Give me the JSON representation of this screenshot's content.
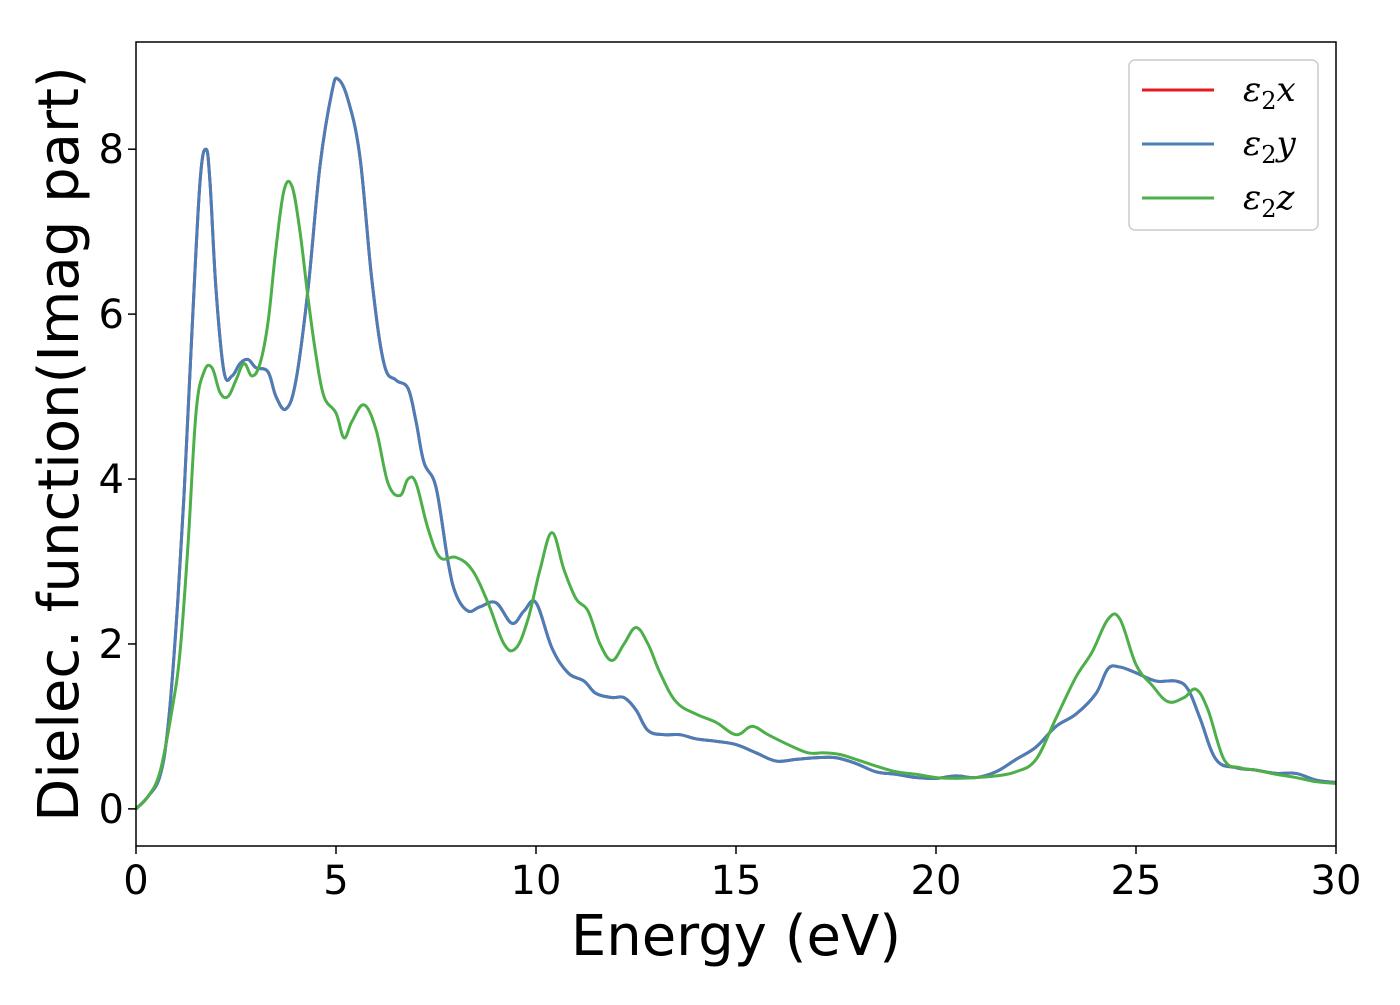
{
  "chart_data": {
    "type": "line",
    "title": "",
    "xlabel": "Energy (eV)",
    "ylabel": "Dielec. function(Imag part)",
    "xlim": [
      0,
      30
    ],
    "ylim": [
      -0.45,
      9.3
    ],
    "xticks": [
      0,
      5,
      10,
      15,
      20,
      25,
      30
    ],
    "xtick_labels": [
      "0",
      "5",
      "10",
      "15",
      "20",
      "25",
      "30"
    ],
    "yticks": [
      0,
      2,
      4,
      6,
      8
    ],
    "ytick_labels": [
      "0",
      "2",
      "4",
      "6",
      "8"
    ],
    "grid": false,
    "legend_position": "top-right",
    "legend": [
      {
        "base": "ε",
        "sub": "2",
        "suffix": "x",
        "color": "#e41a1c"
      },
      {
        "base": "ε",
        "sub": "2",
        "suffix": "y",
        "color": "#4a7eb8"
      },
      {
        "base": "ε",
        "sub": "2",
        "suffix": "z",
        "color": "#4daf4a"
      }
    ],
    "series": [
      {
        "name": "ε2x",
        "color": "#e41a1c",
        "x": [
          0,
          0.3,
          0.6,
          0.8,
          1.0,
          1.2,
          1.4,
          1.6,
          1.75,
          1.85,
          2.0,
          2.2,
          2.4,
          2.6,
          2.8,
          3.0,
          3.3,
          3.5,
          3.75,
          4.0,
          4.3,
          4.6,
          4.9,
          5.05,
          5.3,
          5.6,
          5.9,
          6.2,
          6.5,
          6.8,
          7.0,
          7.2,
          7.5,
          7.8,
          8.0,
          8.3,
          8.6,
          9.0,
          9.4,
          9.7,
          10.0,
          10.4,
          10.8,
          11.2,
          11.5,
          11.9,
          12.2,
          12.5,
          12.8,
          13.2,
          13.6,
          14.0,
          14.5,
          15.0,
          15.5,
          16.0,
          16.5,
          17.0,
          17.5,
          18.0,
          18.5,
          19.0,
          19.5,
          20.0,
          20.5,
          21.0,
          21.5,
          22.0,
          22.5,
          23.0,
          23.5,
          24.0,
          24.3,
          24.6,
          25.0,
          25.5,
          26.0,
          26.3,
          26.6,
          27.0,
          27.5,
          28.0,
          28.5,
          29.0,
          29.5,
          30.0
        ],
        "y": [
          0.0,
          0.15,
          0.4,
          1.0,
          2.2,
          3.8,
          5.8,
          7.6,
          8.0,
          7.6,
          6.3,
          5.3,
          5.25,
          5.4,
          5.45,
          5.35,
          5.3,
          5.0,
          4.85,
          5.2,
          6.3,
          7.8,
          8.7,
          8.85,
          8.6,
          7.9,
          6.4,
          5.4,
          5.2,
          5.1,
          4.7,
          4.2,
          3.9,
          3.0,
          2.6,
          2.4,
          2.45,
          2.5,
          2.25,
          2.4,
          2.5,
          1.95,
          1.65,
          1.55,
          1.4,
          1.35,
          1.35,
          1.2,
          0.95,
          0.9,
          0.9,
          0.85,
          0.82,
          0.78,
          0.68,
          0.58,
          0.6,
          0.62,
          0.62,
          0.55,
          0.45,
          0.42,
          0.38,
          0.37,
          0.4,
          0.38,
          0.45,
          0.6,
          0.75,
          1.0,
          1.15,
          1.4,
          1.7,
          1.72,
          1.65,
          1.55,
          1.55,
          1.45,
          1.1,
          0.6,
          0.5,
          0.47,
          0.43,
          0.43,
          0.35,
          0.32
        ]
      },
      {
        "name": "ε2y",
        "color": "#4a7eb8",
        "x": [
          0,
          0.3,
          0.6,
          0.8,
          1.0,
          1.2,
          1.4,
          1.6,
          1.75,
          1.85,
          2.0,
          2.2,
          2.4,
          2.6,
          2.8,
          3.0,
          3.3,
          3.5,
          3.75,
          4.0,
          4.3,
          4.6,
          4.9,
          5.05,
          5.3,
          5.6,
          5.9,
          6.2,
          6.5,
          6.8,
          7.0,
          7.2,
          7.5,
          7.8,
          8.0,
          8.3,
          8.6,
          9.0,
          9.4,
          9.7,
          10.0,
          10.4,
          10.8,
          11.2,
          11.5,
          11.9,
          12.2,
          12.5,
          12.8,
          13.2,
          13.6,
          14.0,
          14.5,
          15.0,
          15.5,
          16.0,
          16.5,
          17.0,
          17.5,
          18.0,
          18.5,
          19.0,
          19.5,
          20.0,
          20.5,
          21.0,
          21.5,
          22.0,
          22.5,
          23.0,
          23.5,
          24.0,
          24.3,
          24.6,
          25.0,
          25.5,
          26.0,
          26.3,
          26.6,
          27.0,
          27.5,
          28.0,
          28.5,
          29.0,
          29.5,
          30.0
        ],
        "y": [
          0.0,
          0.15,
          0.4,
          1.0,
          2.2,
          3.8,
          5.8,
          7.6,
          8.0,
          7.6,
          6.3,
          5.3,
          5.25,
          5.4,
          5.45,
          5.35,
          5.3,
          5.0,
          4.85,
          5.2,
          6.3,
          7.8,
          8.7,
          8.85,
          8.6,
          7.9,
          6.4,
          5.4,
          5.2,
          5.1,
          4.7,
          4.2,
          3.9,
          3.0,
          2.6,
          2.4,
          2.45,
          2.5,
          2.25,
          2.4,
          2.5,
          1.95,
          1.65,
          1.55,
          1.4,
          1.35,
          1.35,
          1.2,
          0.95,
          0.9,
          0.9,
          0.85,
          0.82,
          0.78,
          0.68,
          0.58,
          0.6,
          0.62,
          0.62,
          0.55,
          0.45,
          0.42,
          0.38,
          0.37,
          0.4,
          0.38,
          0.45,
          0.6,
          0.75,
          1.0,
          1.15,
          1.4,
          1.7,
          1.72,
          1.65,
          1.55,
          1.55,
          1.45,
          1.1,
          0.6,
          0.5,
          0.47,
          0.43,
          0.43,
          0.35,
          0.32
        ]
      },
      {
        "name": "ε2z",
        "color": "#4daf4a",
        "x": [
          0,
          0.3,
          0.6,
          0.9,
          1.1,
          1.3,
          1.5,
          1.7,
          1.9,
          2.1,
          2.3,
          2.5,
          2.7,
          2.9,
          3.1,
          3.3,
          3.5,
          3.7,
          3.9,
          4.1,
          4.3,
          4.5,
          4.7,
          5.0,
          5.2,
          5.4,
          5.7,
          6.0,
          6.3,
          6.6,
          6.8,
          7.0,
          7.3,
          7.6,
          8.0,
          8.4,
          8.8,
          9.2,
          9.5,
          9.8,
          10.1,
          10.4,
          10.7,
          11.0,
          11.3,
          11.6,
          11.9,
          12.2,
          12.5,
          12.8,
          13.1,
          13.5,
          14.0,
          14.5,
          15.0,
          15.4,
          15.8,
          16.3,
          16.8,
          17.2,
          17.6,
          18.0,
          18.5,
          19.0,
          19.5,
          20.0,
          20.5,
          21.0,
          21.5,
          22.0,
          22.5,
          23.0,
          23.5,
          23.9,
          24.3,
          24.6,
          25.0,
          25.4,
          25.8,
          26.2,
          26.5,
          26.8,
          27.2,
          27.6,
          28.0,
          28.5,
          29.0,
          29.5,
          30.0
        ],
        "y": [
          0.0,
          0.15,
          0.45,
          1.2,
          1.9,
          3.2,
          4.8,
          5.3,
          5.35,
          5.05,
          5.0,
          5.2,
          5.4,
          5.25,
          5.4,
          5.9,
          6.8,
          7.5,
          7.55,
          7.0,
          6.2,
          5.5,
          5.0,
          4.8,
          4.5,
          4.7,
          4.9,
          4.6,
          3.95,
          3.8,
          4.0,
          3.95,
          3.4,
          3.05,
          3.05,
          2.9,
          2.5,
          2.0,
          1.95,
          2.3,
          2.9,
          3.35,
          2.9,
          2.55,
          2.4,
          2.0,
          1.8,
          2.0,
          2.2,
          2.0,
          1.65,
          1.3,
          1.15,
          1.05,
          0.9,
          1.0,
          0.9,
          0.78,
          0.68,
          0.68,
          0.66,
          0.6,
          0.52,
          0.45,
          0.42,
          0.38,
          0.37,
          0.38,
          0.4,
          0.45,
          0.6,
          1.1,
          1.6,
          1.9,
          2.3,
          2.3,
          1.75,
          1.5,
          1.3,
          1.35,
          1.45,
          1.2,
          0.6,
          0.5,
          0.47,
          0.42,
          0.38,
          0.33,
          0.31
        ]
      }
    ]
  }
}
